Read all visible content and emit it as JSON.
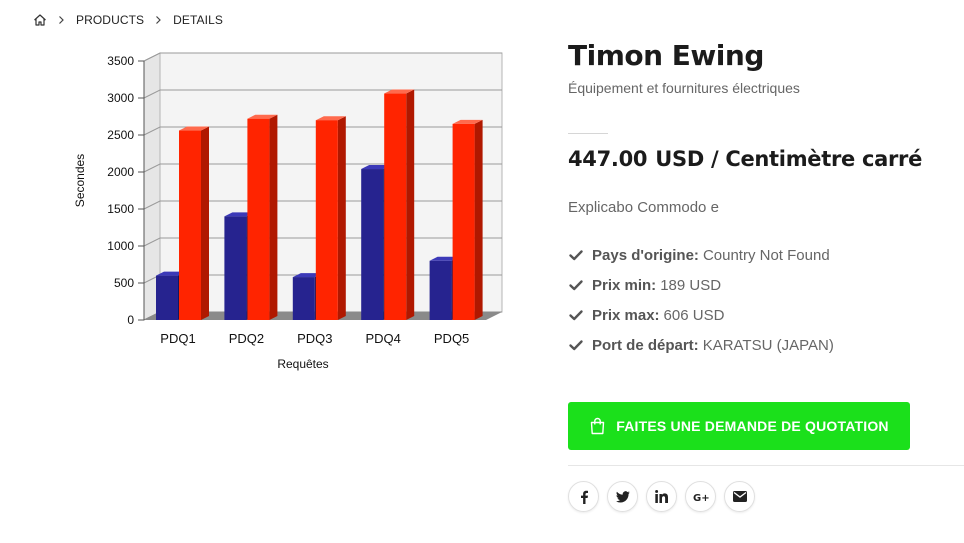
{
  "breadcrumb": {
    "home_icon": "home-icon",
    "items": [
      "PRODUCTS",
      "DETAILS"
    ]
  },
  "product": {
    "title": "Timon Ewing",
    "subtitle": "Équipement et fournitures électriques",
    "price_value": "447.00",
    "price_unit": "USD / Centimètre carré",
    "description": "Explicabo Commodo e",
    "specs": [
      {
        "label": "Pays d'origine:",
        "value": "Country Not Found"
      },
      {
        "label": "Prix min:",
        "value": "189 USD"
      },
      {
        "label": "Prix max:",
        "value": "606 USD"
      },
      {
        "label": "Port de départ:",
        "value": "KARATSU (JAPAN)"
      }
    ],
    "cta_label": "FAITES UNE DEMANDE DE QUOTATION",
    "cta_icon": "shopping-bag-icon",
    "social": [
      {
        "icon": "facebook-icon",
        "glyph": "f"
      },
      {
        "icon": "twitter-icon",
        "glyph": "t"
      },
      {
        "icon": "linkedin-icon",
        "glyph": "in"
      },
      {
        "icon": "google-plus-icon",
        "glyph": "G+"
      },
      {
        "icon": "email-icon",
        "glyph": "✉"
      }
    ]
  },
  "colors": {
    "cta_green": "#1be01b",
    "series_blue": "#22229a",
    "series_red": "#ff2200",
    "text_dark": "#1b1b1b",
    "text_muted": "#666666"
  },
  "chart_data": {
    "type": "bar",
    "categories": [
      "PDQ1",
      "PDQ2",
      "PDQ3",
      "PDQ4",
      "PDQ5"
    ],
    "series": [
      {
        "values": [
          600,
          1400,
          580,
          2040,
          800
        ]
      },
      {
        "values": [
          2560,
          2720,
          2700,
          3060,
          2650
        ]
      }
    ],
    "xlabel": "Requêtes",
    "ylabel": "Secondes",
    "ylim": [
      0,
      3500
    ],
    "yticks": [
      0,
      500,
      1000,
      1500,
      2000,
      2500,
      3000,
      3500
    ],
    "grid": true,
    "style": "3d"
  }
}
